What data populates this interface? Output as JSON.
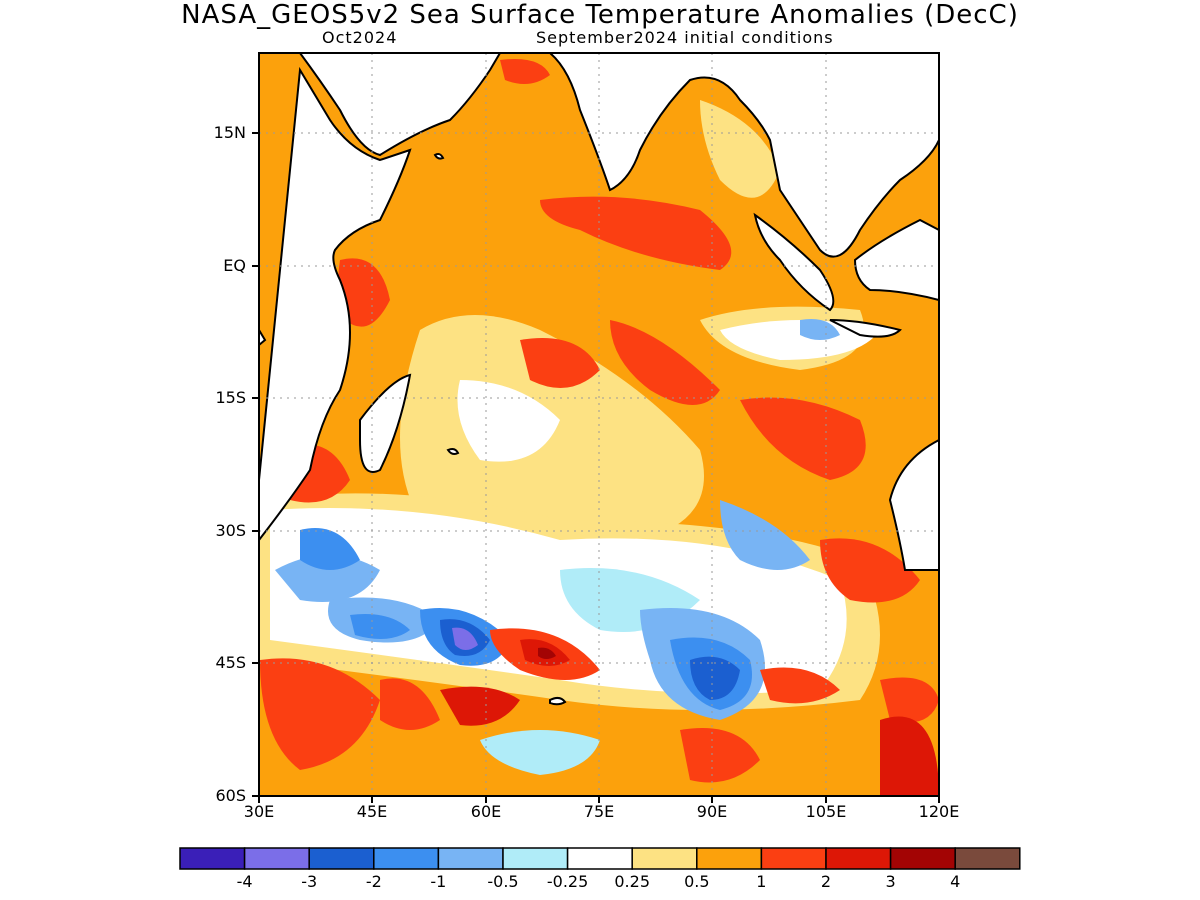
{
  "title": "NASA_GEOS5v2 Sea Surface Temperature Anomalies (DecC)",
  "subtitle_left": "Oct2024",
  "subtitle_right": "September2024 initial conditions",
  "lat_labels": [
    "15N",
    "EQ",
    "15S",
    "30S",
    "45S",
    "60S"
  ],
  "lon_labels": [
    "30E",
    "45E",
    "60E",
    "75E",
    "90E",
    "105E",
    "120E"
  ],
  "colorbar": {
    "labels": [
      "-4",
      "-3",
      "-2",
      "-1",
      "-0.5",
      "-0.25",
      "0.25",
      "0.5",
      "1",
      "2",
      "3",
      "4"
    ],
    "colors": [
      "#3a1fb8",
      "#7b6ee8",
      "#1b5fd0",
      "#3c8ff0",
      "#78b4f4",
      "#b0ecf8",
      "#ffffff",
      "#fde283",
      "#fca10c",
      "#fb3f12",
      "#dd1706",
      "#a30404",
      "#7a4a3c"
    ]
  },
  "map": {
    "lon_range": [
      30,
      120
    ],
    "lat_range": [
      -60,
      24
    ],
    "land_color": "#ffffff",
    "coastline_color": "#000000"
  }
}
